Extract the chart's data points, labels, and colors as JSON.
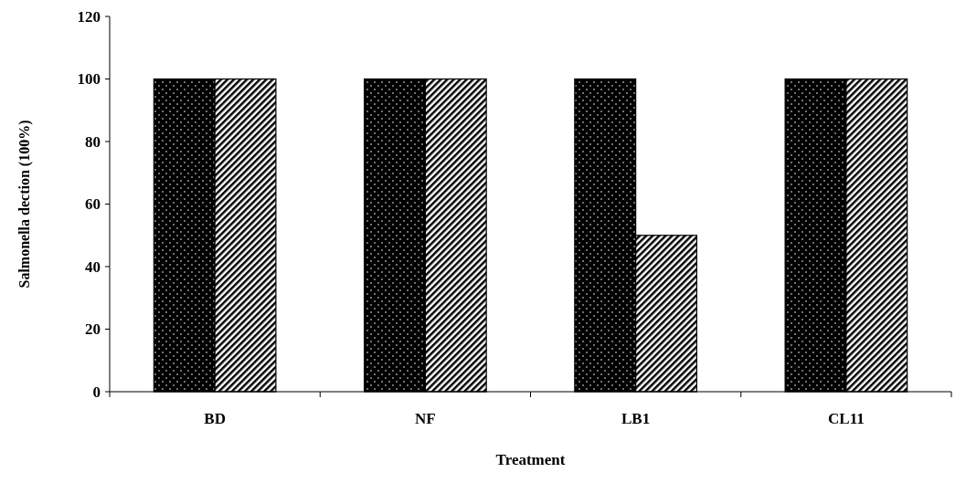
{
  "chart_data": {
    "type": "bar",
    "xlabel": "Treatment",
    "ylabel": "Salmonella dection (100%)",
    "categories": [
      "BD",
      "NF",
      "LB1",
      "CL11"
    ],
    "series": [
      {
        "color": "#000000",
        "values": [
          100,
          100,
          100,
          100
        ]
      },
      {
        "color": "#000000",
        "values": [
          100,
          100,
          50,
          100
        ]
      }
    ],
    "ylim": [
      0,
      120
    ],
    "yticks": [
      0,
      20,
      40,
      60,
      80,
      100,
      120
    ],
    "grid": false
  }
}
